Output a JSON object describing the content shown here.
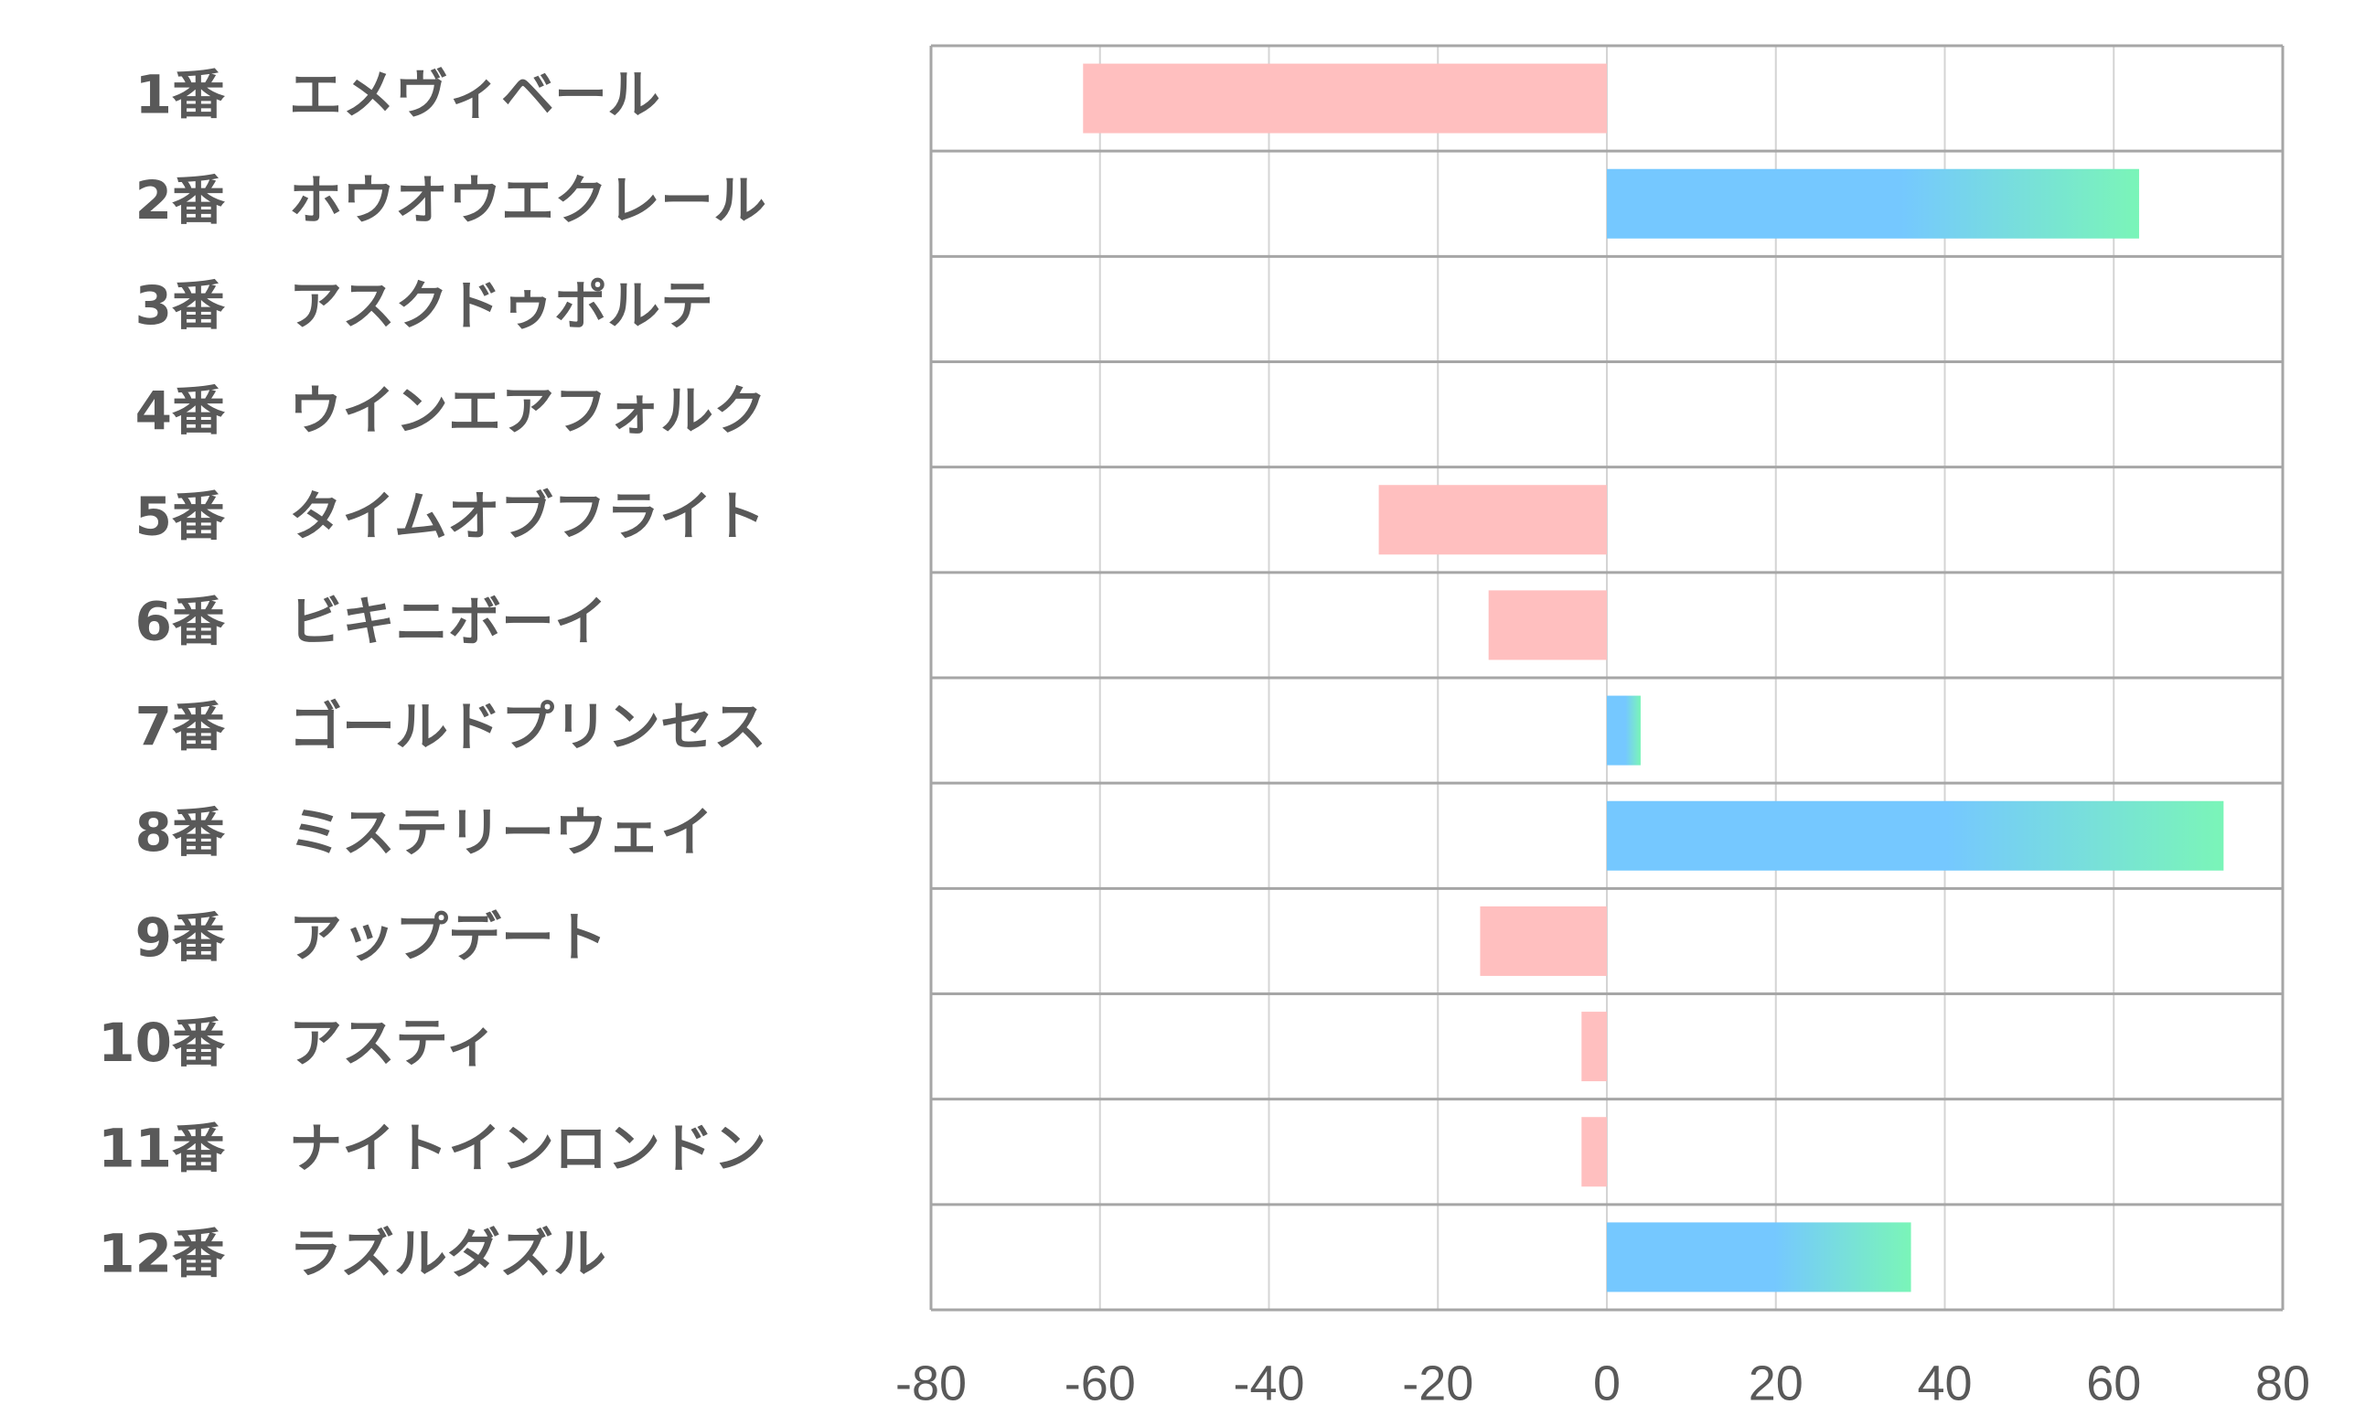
{
  "chart_data": {
    "type": "bar",
    "orientation": "horizontal",
    "numbers": [
      "1番",
      "2番",
      "3番",
      "4番",
      "5番",
      "6番",
      "7番",
      "8番",
      "9番",
      "10番",
      "11番",
      "12番"
    ],
    "categories": [
      "エメヴィベール",
      "ホウオウエクレール",
      "アスクドゥポルテ",
      "ウインエアフォルク",
      "タイムオブフライト",
      "ビキニボーイ",
      "ゴールドプリンセス",
      "ミステリーウェイ",
      "アップデート",
      "アスティ",
      "ナイトインロンドン",
      "ラズルダズル"
    ],
    "values": [
      -62,
      63,
      0,
      0,
      -27,
      -14,
      4,
      73,
      -15,
      -3,
      -3,
      36
    ],
    "negative_color": "#ffbfbf",
    "positive_colors": [
      "#75c8ff",
      "#7af5b8"
    ],
    "xlim": [
      -80,
      80
    ],
    "xticks": [
      -80,
      -60,
      -40,
      -20,
      0,
      20,
      40,
      60,
      80
    ],
    "grid": true
  }
}
